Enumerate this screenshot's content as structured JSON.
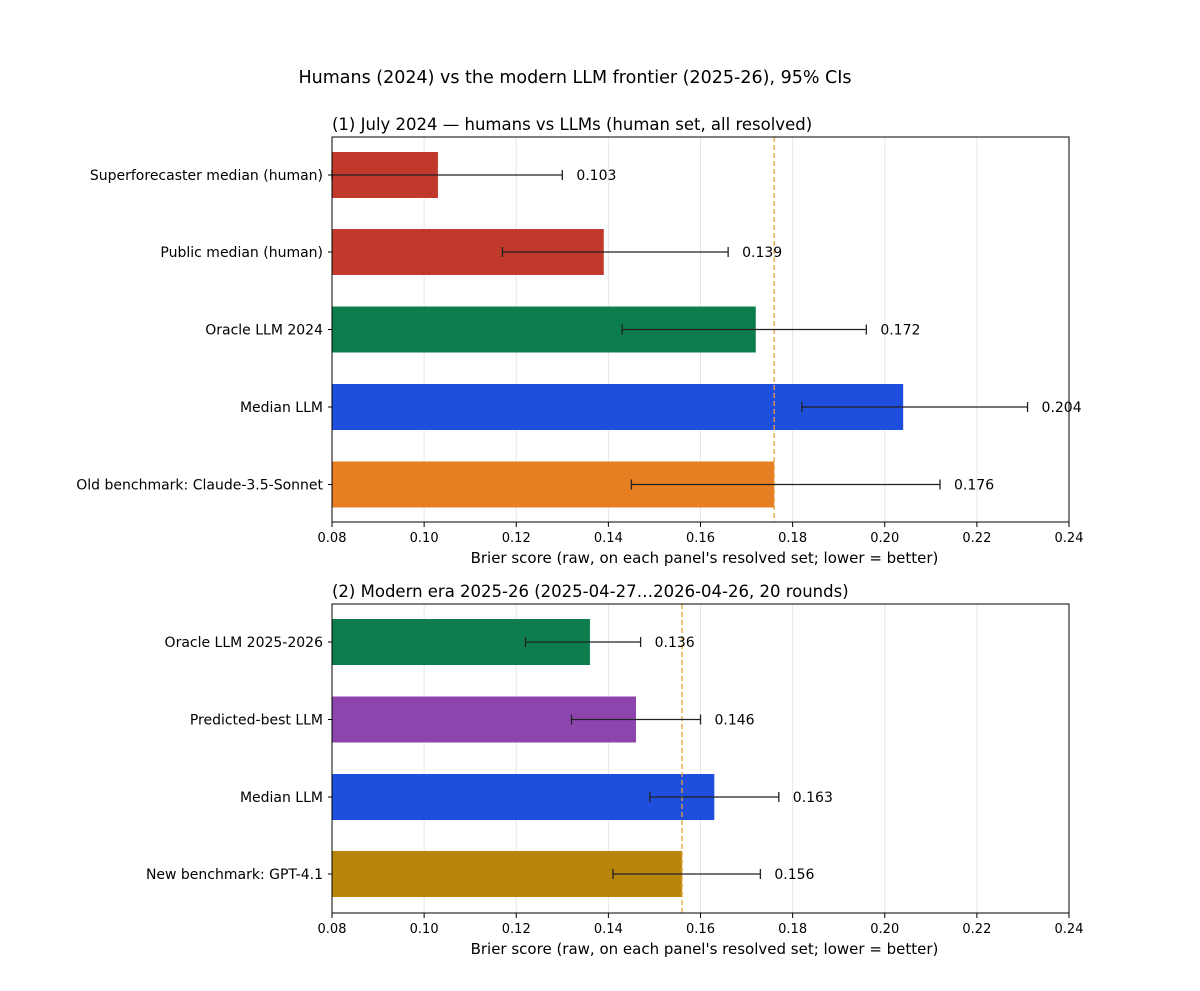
{
  "figure_title": "Humans (2024) vs the modern LLM frontier (2025-26), 95% CIs",
  "chart_data": [
    {
      "type": "bar",
      "orientation": "horizontal",
      "title": "(1) July 2024 — humans vs LLMs (human set, all resolved)",
      "xlabel": "Brier score (raw, on each panel's resolved set; lower = better)",
      "ylabel": "",
      "xlim": [
        0.08,
        0.24
      ],
      "xticks": [
        0.08,
        0.1,
        0.12,
        0.14,
        0.16,
        0.18,
        0.2,
        0.22,
        0.24
      ],
      "xtick_labels": [
        "0.08",
        "0.10",
        "0.12",
        "0.14",
        "0.16",
        "0.18",
        "0.20",
        "0.22",
        "0.24"
      ],
      "grid": "vertical",
      "reference_line": 0.176,
      "categories": [
        "Superforecaster median (human)",
        "Public median (human)",
        "Oracle LLM 2024",
        "Median LLM",
        "Old benchmark: Claude-3.5-Sonnet"
      ],
      "values": [
        0.103,
        0.139,
        0.172,
        0.204,
        0.176
      ],
      "ci_low": [
        0.08,
        0.117,
        0.143,
        0.182,
        0.145
      ],
      "ci_high": [
        0.13,
        0.166,
        0.196,
        0.231,
        0.212
      ],
      "value_labels": [
        "0.103",
        "0.139",
        "0.172",
        "0.204",
        "0.176"
      ],
      "colors": [
        "#c0392b",
        "#c0392b",
        "#0e7d4e",
        "#1d4fdc",
        "#e67e22"
      ]
    },
    {
      "type": "bar",
      "orientation": "horizontal",
      "title": "(2) Modern era 2025-26 (2025-04-27…2026-04-26, 20 rounds)",
      "xlabel": "Brier score (raw, on each panel's resolved set; lower = better)",
      "ylabel": "",
      "xlim": [
        0.08,
        0.24
      ],
      "xticks": [
        0.08,
        0.1,
        0.12,
        0.14,
        0.16,
        0.18,
        0.2,
        0.22,
        0.24
      ],
      "xtick_labels": [
        "0.08",
        "0.10",
        "0.12",
        "0.14",
        "0.16",
        "0.18",
        "0.20",
        "0.22",
        "0.24"
      ],
      "grid": "vertical",
      "reference_line": 0.156,
      "categories": [
        "Oracle LLM 2025-2026",
        "Predicted-best LLM",
        "Median LLM",
        "New benchmark: GPT-4.1"
      ],
      "values": [
        0.136,
        0.146,
        0.163,
        0.156
      ],
      "ci_low": [
        0.122,
        0.132,
        0.149,
        0.141
      ],
      "ci_high": [
        0.147,
        0.16,
        0.177,
        0.173
      ],
      "value_labels": [
        "0.136",
        "0.146",
        "0.163",
        "0.156"
      ],
      "colors": [
        "#0e7d4e",
        "#8e44ad",
        "#1d4fdc",
        "#b8860b"
      ]
    }
  ]
}
